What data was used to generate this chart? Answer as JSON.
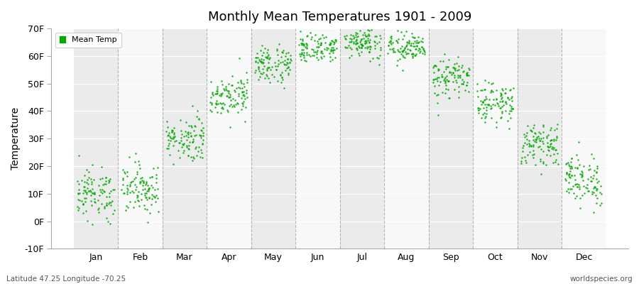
{
  "title": "Monthly Mean Temperatures 1901 - 2009",
  "ylabel": "Temperature",
  "footer_left": "Latitude 47.25 Longitude -70.25",
  "footer_right": "worldspecies.org",
  "legend_label": "Mean Temp",
  "ylim": [
    -10,
    70
  ],
  "yticks": [
    -10,
    0,
    10,
    20,
    30,
    40,
    50,
    60,
    70
  ],
  "ytick_labels": [
    "-10F",
    "0F",
    "10F",
    "20F",
    "30F",
    "40F",
    "50F",
    "60F",
    "70F"
  ],
  "months": [
    "Jan",
    "Feb",
    "Mar",
    "Apr",
    "May",
    "Jun",
    "Jul",
    "Aug",
    "Sep",
    "Oct",
    "Nov",
    "Dec"
  ],
  "dot_color": "#00aa00",
  "bg_color_even": "#ebebeb",
  "bg_color_odd": "#f8f8f8",
  "month_means": [
    10,
    12,
    30,
    46,
    57,
    63,
    65,
    63,
    52,
    43,
    28,
    15
  ],
  "month_stds": [
    4.5,
    4.5,
    4.0,
    3.5,
    3.5,
    2.5,
    2.5,
    2.5,
    3.5,
    3.5,
    3.5,
    4.5
  ],
  "month_trend": [
    0.02,
    0.02,
    0.02,
    0.02,
    0.02,
    0.02,
    0.02,
    0.02,
    0.02,
    0.02,
    0.02,
    0.02
  ],
  "n_years": 109
}
